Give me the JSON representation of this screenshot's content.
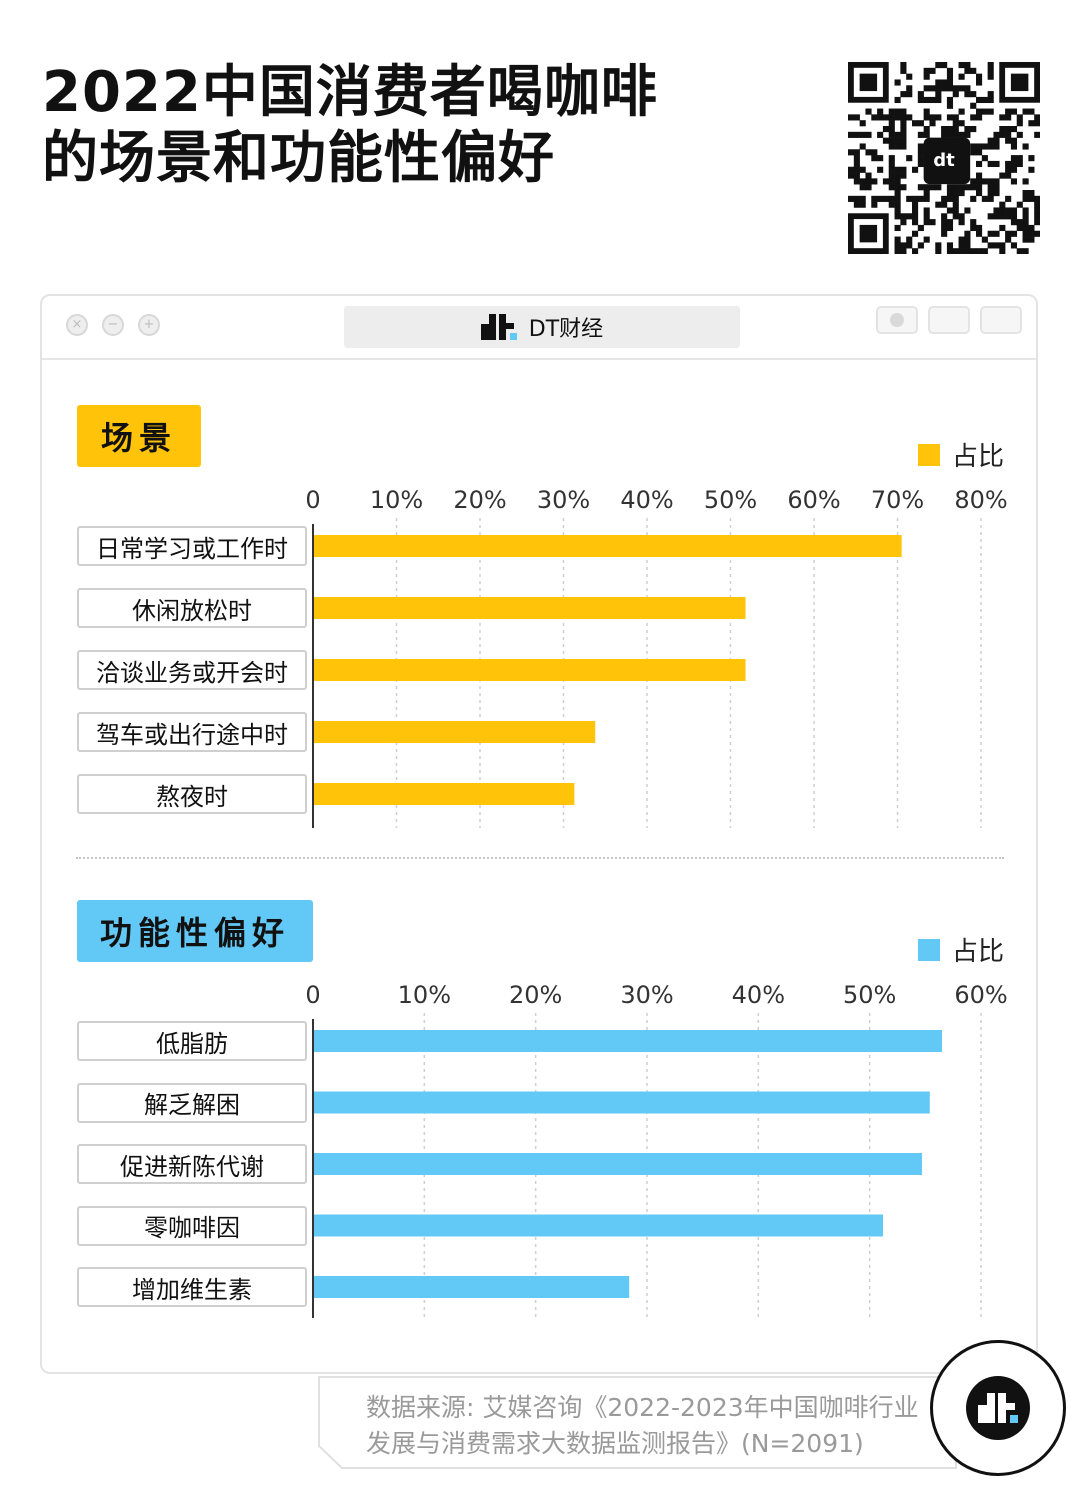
{
  "header": {
    "title_line1": "2022中国消费者喝咖啡",
    "title_line2": "的场景和功能性偏好"
  },
  "window": {
    "url_label": "DT财经",
    "logo_text": "dt"
  },
  "colors": {
    "scene": "#FFC40A",
    "function": "#62C8F5"
  },
  "chart_data": [
    {
      "type": "bar",
      "orientation": "horizontal",
      "title": "场景",
      "legend": "占比",
      "legend_position": "top-right",
      "xlim": [
        0,
        80
      ],
      "ticks": [
        "0",
        "10%",
        "20%",
        "30%",
        "40%",
        "50%",
        "60%",
        "70%",
        "80%"
      ],
      "tick_values": [
        0,
        10,
        20,
        30,
        40,
        50,
        60,
        70,
        80
      ],
      "grid": true,
      "categories": [
        "日常学习或工作时",
        "休闲放松时",
        "洽谈业务或开会时",
        "驾车或出行途中时",
        "熬夜时"
      ],
      "values": [
        70.5,
        51.8,
        51.8,
        33.8,
        31.3
      ],
      "color": "#FFC40A"
    },
    {
      "type": "bar",
      "orientation": "horizontal",
      "title": "功能性偏好",
      "legend": "占比",
      "legend_position": "top-right",
      "xlim": [
        0,
        60
      ],
      "ticks": [
        "0",
        "10%",
        "20%",
        "30%",
        "40%",
        "50%",
        "60%"
      ],
      "tick_values": [
        0,
        10,
        20,
        30,
        40,
        50,
        60
      ],
      "grid": true,
      "categories": [
        "低脂肪",
        "解乏解困",
        "促进新陈代谢",
        "零咖啡因",
        "增加维生素"
      ],
      "values": [
        56.5,
        55.4,
        54.7,
        51.2,
        28.4
      ],
      "color": "#62C8F5"
    }
  ],
  "footer": {
    "source_line1": "数据来源: 艾媒咨询《2022-2023年中国咖啡行业",
    "source_line2": "发展与消费需求大数据监测报告》(N=2091)",
    "logo_text": "dt"
  }
}
